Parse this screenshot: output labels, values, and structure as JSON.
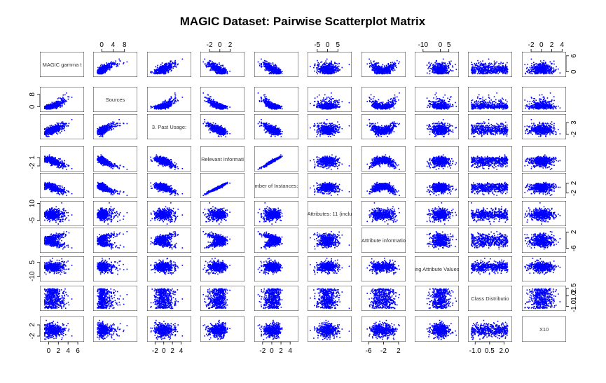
{
  "chart_data": {
    "type": "scatter",
    "title": "MAGIC Dataset: Pairwise Scatterplot Matrix",
    "variables": [
      {
        "label": "MAGIC gamma t",
        "range": [
          -1.5,
          7
        ],
        "ticks": [
          0,
          2,
          4,
          6
        ],
        "tick_labels": [
          "0",
          "2",
          "4",
          "6"
        ]
      },
      {
        "label": "Sources",
        "range": [
          -2.5,
          12
        ],
        "ticks": [
          0,
          4,
          8
        ],
        "tick_labels": [
          "0",
          "4",
          "8"
        ]
      },
      {
        "label": "3. Past Usage:",
        "range": [
          -3.5,
          6
        ],
        "ticks": [
          -2,
          0,
          2,
          4
        ],
        "tick_labels": [
          "-2",
          "0",
          "2",
          "4"
        ]
      },
      {
        "label": "Relevant Informati",
        "range": [
          -3.5,
          4.5
        ],
        "ticks": [
          -2,
          0,
          2
        ],
        "tick_labels": [
          "-2",
          "0",
          "2"
        ]
      },
      {
        "label": "mber of Instances:",
        "range": [
          -3.5,
          5.5
        ],
        "ticks": [
          -2,
          0,
          2,
          4
        ],
        "tick_labels": [
          "-2",
          "0",
          "2",
          "4"
        ]
      },
      {
        "label": "Attributes: 11 (inclu",
        "range": [
          -9,
          11
        ],
        "ticks": [
          -5,
          0,
          5
        ],
        "tick_labels": [
          "-5",
          "0",
          "5"
        ]
      },
      {
        "label": "Attribute informatio",
        "range": [
          -7.5,
          3.5
        ],
        "ticks": [
          -6,
          -2,
          2
        ],
        "tick_labels": [
          "-6",
          "-2",
          "2"
        ]
      },
      {
        "label": "ing Attribute Values",
        "range": [
          -14,
          10
        ],
        "ticks": [
          -10,
          0,
          5
        ],
        "tick_labels": [
          "-10",
          "0",
          "5"
        ]
      },
      {
        "label": "Class Distributio",
        "range": [
          -1.6,
          2.7
        ],
        "ticks": [
          -1.0,
          0.5,
          2.0
        ],
        "tick_labels": [
          "-1.0",
          "0.5",
          "2.0"
        ]
      },
      {
        "label": "X10",
        "range": [
          -3.5,
          4.5
        ],
        "ticks": [
          -2,
          0,
          2,
          4
        ],
        "tick_labels": [
          "-2",
          "0",
          "2",
          "4"
        ]
      }
    ],
    "side_axes": {
      "top": [
        {
          "var": 1,
          "ticks": [
            0,
            4,
            8
          ],
          "tick_labels": [
            "0",
            "4",
            "8"
          ]
        },
        {
          "var": 3,
          "ticks": [
            -2,
            0,
            2
          ],
          "tick_labels": [
            "-2",
            "0",
            "2"
          ]
        },
        {
          "var": 5,
          "ticks": [
            -5,
            0,
            5
          ],
          "tick_labels": [
            "-5",
            "0",
            "5"
          ]
        },
        {
          "var": 7,
          "ticks": [
            -10,
            0,
            5
          ],
          "tick_labels": [
            "-10",
            "0",
            "5"
          ]
        },
        {
          "var": 9,
          "ticks": [
            -2,
            0,
            2,
            4
          ],
          "tick_labels": [
            "-2",
            "0",
            "2",
            "4"
          ]
        }
      ],
      "bottom": [
        {
          "var": 0,
          "ticks": [
            0,
            2,
            4,
            6
          ],
          "tick_labels": [
            "0",
            "2",
            "4",
            "6"
          ]
        },
        {
          "var": 2,
          "ticks": [
            -2,
            0,
            2,
            4
          ],
          "tick_labels": [
            "-2",
            "0",
            "2",
            "4"
          ]
        },
        {
          "var": 4,
          "ticks": [
            -2,
            0,
            2,
            4
          ],
          "tick_labels": [
            "-2",
            "0",
            "2",
            "4"
          ]
        },
        {
          "var": 6,
          "ticks": [
            -6,
            -2,
            2
          ],
          "tick_labels": [
            "-6",
            "-2",
            "2"
          ]
        },
        {
          "var": 8,
          "ticks": [
            -1.0,
            0.5,
            2.0
          ],
          "tick_labels": [
            "-1.0",
            "0.5",
            "2.0"
          ]
        }
      ],
      "left": [
        {
          "var": 1,
          "ticks": [
            0,
            8
          ],
          "tick_labels": [
            "0",
            "8"
          ]
        },
        {
          "var": 3,
          "ticks": [
            -2,
            1
          ],
          "tick_labels": [
            "-2",
            "1"
          ]
        },
        {
          "var": 5,
          "ticks": [
            -5,
            10
          ],
          "tick_labels": [
            "-5",
            "10"
          ]
        },
        {
          "var": 7,
          "ticks": [
            -10,
            5
          ],
          "tick_labels": [
            "-10",
            "5"
          ]
        },
        {
          "var": 9,
          "ticks": [
            -2,
            2
          ],
          "tick_labels": [
            "-2",
            "2"
          ]
        }
      ],
      "right": [
        {
          "var": 0,
          "ticks": [
            0,
            6
          ],
          "tick_labels": [
            "0",
            "6"
          ]
        },
        {
          "var": 2,
          "ticks": [
            -2,
            3
          ],
          "tick_labels": [
            "-2",
            "3"
          ]
        },
        {
          "var": 4,
          "ticks": [
            -2,
            2
          ],
          "tick_labels": [
            "-2",
            "2"
          ]
        },
        {
          "var": 6,
          "ticks": [
            -6,
            2
          ],
          "tick_labels": [
            "-6",
            "2"
          ]
        },
        {
          "var": 8,
          "ticks": [
            -1.0,
            1.0,
            2.5
          ],
          "tick_labels": [
            "-1.0",
            "1.0",
            "2.5"
          ]
        }
      ]
    },
    "point_color": "#0000ff",
    "grid": false,
    "legend": "none"
  }
}
